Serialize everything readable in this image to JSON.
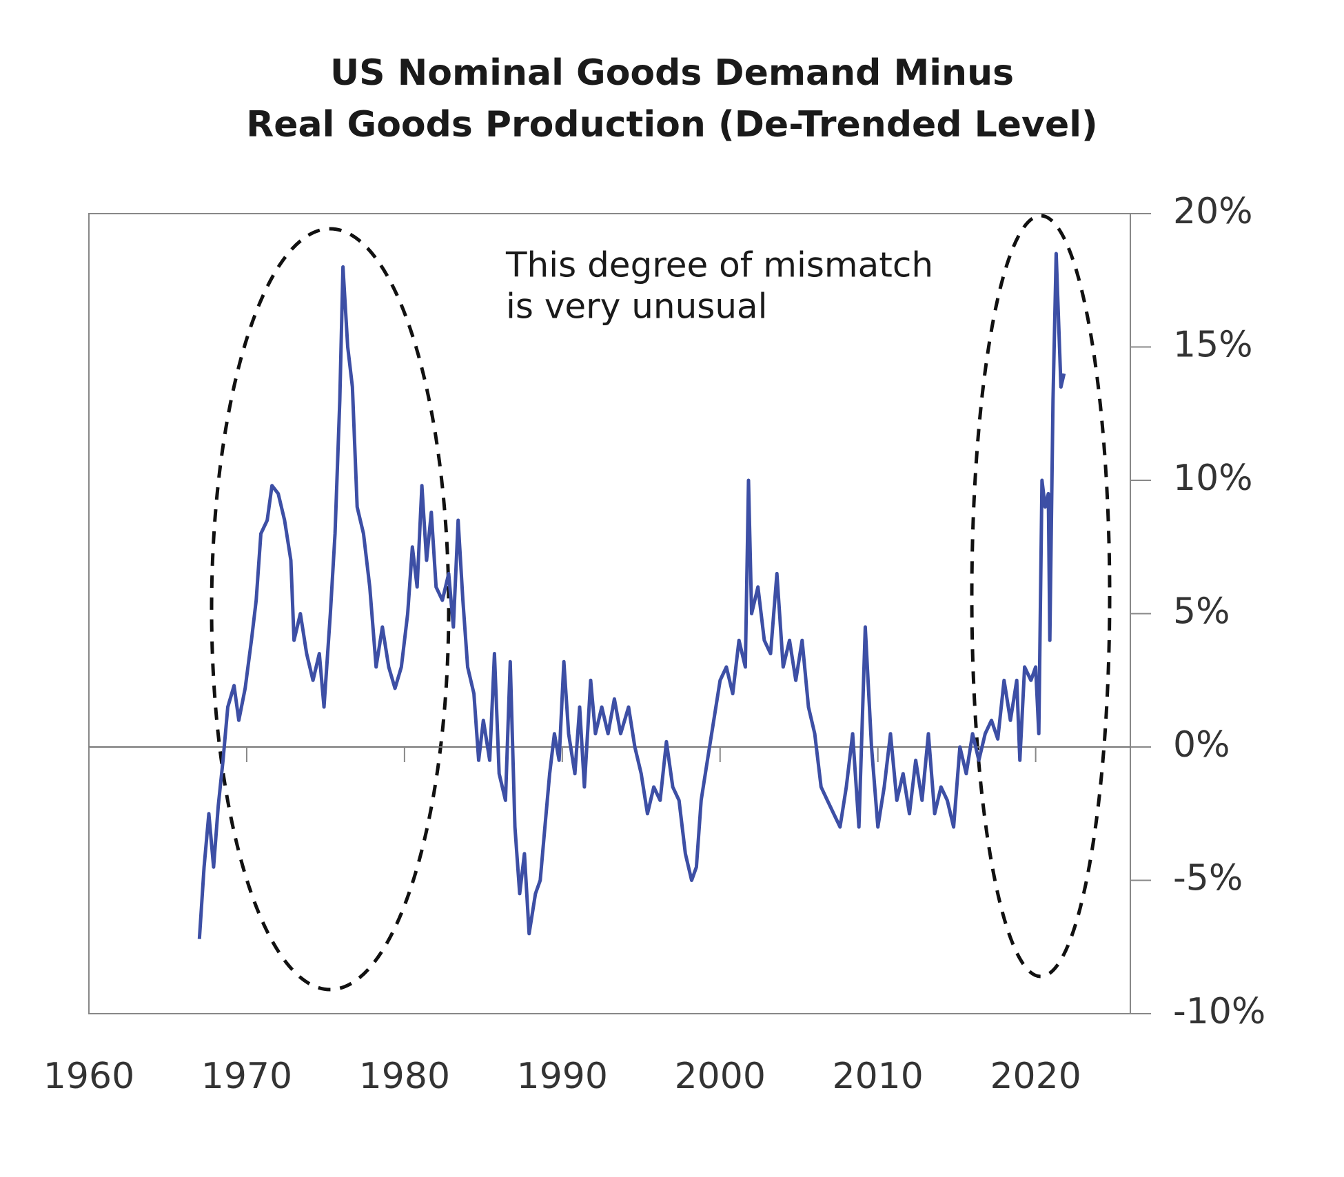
{
  "chart_data": {
    "type": "line",
    "title": [
      "US Nominal Goods Demand Minus",
      "Real Goods Production (De-Trended Level)"
    ],
    "annotation": [
      "This degree of mismatch",
      "is very unusual"
    ],
    "xlim": [
      1960,
      2026
    ],
    "xticks": [
      1960,
      1970,
      1980,
      1990,
      2000,
      2010,
      2020
    ],
    "ylim": [
      -10,
      20
    ],
    "yticks": [
      {
        "value": -10,
        "label": "-10%"
      },
      {
        "value": -5,
        "label": "-5%"
      },
      {
        "value": 0,
        "label": "0%"
      },
      {
        "value": 5,
        "label": "5%"
      },
      {
        "value": 10,
        "label": "10%"
      },
      {
        "value": 15,
        "label": "15%"
      },
      {
        "value": 20,
        "label": "20%"
      }
    ],
    "series": [
      {
        "color": "#3d4fa5",
        "x": [
          1967.0,
          1967.3,
          1967.6,
          1967.9,
          1968.2,
          1968.5,
          1968.8,
          1969.2,
          1969.5,
          1969.9,
          1970.3,
          1970.6,
          1970.9,
          1971.3,
          1971.6,
          1972.0,
          1972.4,
          1972.8,
          1973.0,
          1973.4,
          1973.8,
          1974.2,
          1974.6,
          1974.9,
          1975.3,
          1975.6,
          1975.9,
          1976.1,
          1976.4,
          1976.7,
          1977.0,
          1977.4,
          1977.8,
          1978.2,
          1978.6,
          1979.0,
          1979.4,
          1979.8,
          1980.2,
          1980.5,
          1980.8,
          1981.1,
          1981.4,
          1981.7,
          1982.0,
          1982.4,
          1982.8,
          1983.1,
          1983.4,
          1983.7,
          1984.0,
          1984.4,
          1984.7,
          1985.0,
          1985.4,
          1985.7,
          1986.0,
          1986.4,
          1986.7,
          1987.0,
          1987.3,
          1987.6,
          1987.9,
          1988.3,
          1988.6,
          1988.9,
          1989.2,
          1989.5,
          1989.8,
          1990.1,
          1990.4,
          1990.8,
          1991.1,
          1991.4,
          1991.8,
          1992.1,
          1992.5,
          1992.9,
          1993.3,
          1993.7,
          1994.2,
          1994.6,
          1995.0,
          1995.4,
          1995.8,
          1996.2,
          1996.6,
          1997.0,
          1997.4,
          1997.8,
          1998.2,
          1998.5,
          1998.8,
          1999.2,
          1999.6,
          2000.0,
          2000.4,
          2000.8,
          2001.2,
          2001.6,
          2001.8,
          2002.0,
          2002.4,
          2002.8,
          2003.2,
          2003.6,
          2004.0,
          2004.4,
          2004.8,
          2005.2,
          2005.6,
          2006.0,
          2006.4,
          2006.8,
          2007.2,
          2007.6,
          2008.0,
          2008.4,
          2008.8,
          2009.2,
          2009.6,
          2010.0,
          2010.4,
          2010.8,
          2011.2,
          2011.6,
          2012.0,
          2012.4,
          2012.8,
          2013.2,
          2013.6,
          2014.0,
          2014.4,
          2014.8,
          2015.2,
          2015.6,
          2016.0,
          2016.4,
          2016.8,
          2017.2,
          2017.6,
          2018.0,
          2018.4,
          2018.8,
          2019.0,
          2019.3,
          2019.7,
          2020.0,
          2020.2,
          2020.4,
          2020.6,
          2020.8,
          2020.9,
          2021.1,
          2021.3,
          2021.6,
          2021.8
        ],
        "values": [
          -7.2,
          -4.5,
          -2.5,
          -4.5,
          -2.2,
          -0.5,
          1.5,
          2.3,
          1.0,
          2.2,
          4.0,
          5.5,
          8.0,
          8.5,
          9.8,
          9.5,
          8.5,
          7.0,
          4.0,
          5.0,
          3.5,
          2.5,
          3.5,
          1.5,
          5.0,
          8.0,
          13.0,
          18.0,
          15.0,
          13.5,
          9.0,
          8.0,
          6.0,
          3.0,
          4.5,
          3.0,
          2.2,
          3.0,
          5.0,
          7.5,
          6.0,
          9.8,
          7.0,
          8.8,
          6.0,
          5.5,
          6.5,
          4.5,
          8.5,
          5.5,
          3.0,
          2.0,
          -0.5,
          1.0,
          -0.5,
          3.5,
          -1.0,
          -2.0,
          3.2,
          -3.0,
          -5.5,
          -4.0,
          -7.0,
          -5.5,
          -5.0,
          -3.0,
          -1.0,
          0.5,
          -0.5,
          3.2,
          0.5,
          -1.0,
          1.5,
          -1.5,
          2.5,
          0.5,
          1.5,
          0.5,
          1.8,
          0.5,
          1.5,
          0.0,
          -1.0,
          -2.5,
          -1.5,
          -2.0,
          0.2,
          -1.5,
          -2.0,
          -4.0,
          -5.0,
          -4.5,
          -2.0,
          -0.5,
          1.0,
          2.5,
          3.0,
          2.0,
          4.0,
          3.0,
          10.0,
          5.0,
          6.0,
          4.0,
          3.5,
          6.5,
          3.0,
          4.0,
          2.5,
          4.0,
          1.5,
          0.5,
          -1.5,
          -2.0,
          -2.5,
          -3.0,
          -1.5,
          0.5,
          -3.0,
          4.5,
          0.0,
          -3.0,
          -1.5,
          0.5,
          -2.0,
          -1.0,
          -2.5,
          -0.5,
          -2.0,
          0.5,
          -2.5,
          -1.5,
          -2.0,
          -3.0,
          0.0,
          -1.0,
          0.5,
          -0.5,
          0.5,
          1.0,
          0.3,
          2.5,
          1.0,
          2.5,
          -0.5,
          3.0,
          2.5,
          3.0,
          0.5,
          10.0,
          9.0,
          9.5,
          4.0,
          13.0,
          18.5,
          13.5,
          14.0
        ]
      }
    ]
  }
}
